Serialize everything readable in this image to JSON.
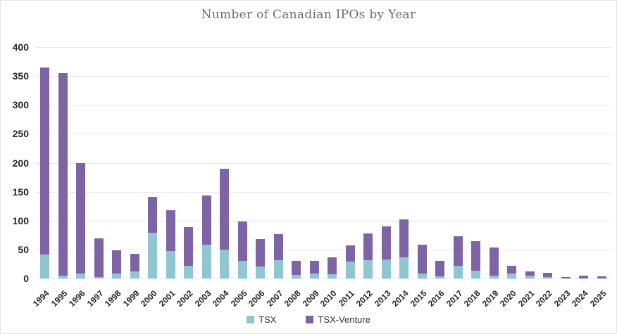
{
  "chart_data": {
    "type": "bar",
    "stacked": true,
    "title": "Number of Canadian IPOs by Year",
    "xlabel": "",
    "ylabel": "",
    "ylim": [
      0,
      400
    ],
    "y_tick_step": 50,
    "y_tick_labels": [
      "0",
      "50",
      "100",
      "150",
      "200",
      "250",
      "300",
      "350",
      "400"
    ],
    "grid": true,
    "legend_position": "bottom",
    "categories": [
      "1994",
      "1995",
      "1996",
      "1997",
      "1998",
      "1999",
      "2000",
      "2001",
      "2002",
      "2003",
      "2004",
      "2005",
      "2006",
      "2007",
      "2008",
      "2009",
      "2010",
      "2011",
      "2012",
      "2013",
      "2014",
      "2015",
      "2016",
      "2017",
      "2018",
      "2019",
      "2020",
      "2021",
      "2022",
      "2023",
      "2024",
      "2025"
    ],
    "series": [
      {
        "name": "TSX",
        "color": "#8fc7ce",
        "values": [
          41,
          5,
          9,
          2,
          9,
          12,
          79,
          48,
          22,
          58,
          50,
          30,
          21,
          32,
          6,
          8,
          7,
          29,
          32,
          33,
          36,
          8,
          4,
          22,
          13,
          5,
          9,
          5,
          2,
          0,
          0,
          0
        ]
      },
      {
        "name": "TSX-Venture",
        "color": "#7d64a4",
        "values": [
          324,
          350,
          190,
          67,
          40,
          30,
          62,
          70,
          67,
          85,
          140,
          68,
          47,
          45,
          25,
          23,
          29,
          28,
          46,
          57,
          66,
          50,
          26,
          51,
          52,
          48,
          13,
          7,
          8,
          3,
          5,
          4
        ]
      }
    ],
    "totals": [
      365,
      355,
      199,
      69,
      49,
      42,
      141,
      118,
      89,
      143,
      190,
      98,
      68,
      77,
      31,
      31,
      36,
      57,
      78,
      90,
      102,
      58,
      30,
      73,
      65,
      53,
      22,
      12,
      10,
      3,
      5,
      4
    ]
  },
  "colors": {
    "grid": "#e7e7e7",
    "axis_text": "#262626",
    "title_text": "#6e6e6e",
    "frame_border": "#e4e4e4"
  }
}
